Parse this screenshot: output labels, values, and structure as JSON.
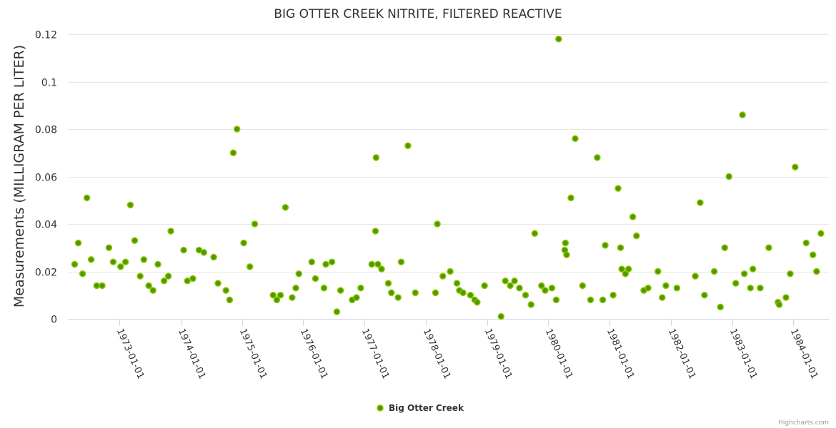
{
  "chart_data": {
    "type": "scatter",
    "title": "BIG OTTER CREEK NITRITE, FILTERED REACTIVE",
    "xlabel": "",
    "ylabel": "Measurements (MILLIGRAM PER LITER)",
    "ylim": [
      0,
      0.12
    ],
    "xlim": [
      1972.16,
      1984.58
    ],
    "yticks": [
      0,
      0.02,
      0.04,
      0.06,
      0.08,
      0.1,
      0.12
    ],
    "ytick_labels": [
      "0",
      "0.02",
      "0.04",
      "0.06",
      "0.08",
      "0.1",
      "0.12"
    ],
    "xticks": [
      1973,
      1974,
      1975,
      1976,
      1977,
      1978,
      1979,
      1980,
      1981,
      1982,
      1983,
      1984
    ],
    "xtick_labels": [
      "1973-01-01",
      "1974-01-01",
      "1975-01-01",
      "1976-01-01",
      "1977-01-01",
      "1978-01-01",
      "1979-01-01",
      "1980-01-01",
      "1981-01-01",
      "1982-01-01",
      "1983-01-01",
      "1984-01-01"
    ],
    "grid": true,
    "legend_position": "bottom-center",
    "series": [
      {
        "name": "Big Otter Creek",
        "color": "#4f9a00",
        "x": [
          1972.27,
          1972.33,
          1972.4,
          1972.47,
          1972.54,
          1972.63,
          1972.72,
          1972.83,
          1972.9,
          1973.02,
          1973.1,
          1973.18,
          1973.25,
          1973.34,
          1973.4,
          1973.48,
          1973.55,
          1973.63,
          1973.73,
          1973.8,
          1973.84,
          1974.05,
          1974.11,
          1974.2,
          1974.3,
          1974.38,
          1974.54,
          1974.61,
          1974.74,
          1974.8,
          1974.86,
          1974.92,
          1975.03,
          1975.13,
          1975.21,
          1975.51,
          1975.57,
          1975.63,
          1975.71,
          1975.82,
          1975.88,
          1975.93,
          1976.14,
          1976.2,
          1976.34,
          1976.37,
          1976.47,
          1976.55,
          1976.61,
          1976.8,
          1976.87,
          1976.94,
          1977.12,
          1977.18,
          1977.19,
          1977.22,
          1977.28,
          1977.39,
          1977.44,
          1977.55,
          1977.6,
          1977.71,
          1977.83,
          1978.16,
          1978.19,
          1978.28,
          1978.4,
          1978.51,
          1978.55,
          1978.61,
          1978.73,
          1978.8,
          1978.84,
          1978.96,
          1979.23,
          1979.3,
          1979.38,
          1979.45,
          1979.53,
          1979.63,
          1979.72,
          1979.78,
          1979.89,
          1979.95,
          1980.06,
          1980.13,
          1980.17,
          1980.27,
          1980.28,
          1980.3,
          1980.37,
          1980.44,
          1980.56,
          1980.69,
          1980.8,
          1980.89,
          1980.93,
          1981.06,
          1981.14,
          1981.18,
          1981.2,
          1981.26,
          1981.31,
          1981.38,
          1981.44,
          1981.56,
          1981.63,
          1981.79,
          1981.86,
          1981.92,
          1982.1,
          1982.4,
          1982.48,
          1982.55,
          1982.71,
          1982.81,
          1982.88,
          1982.95,
          1983.06,
          1983.17,
          1983.2,
          1983.3,
          1983.34,
          1983.46,
          1983.6,
          1983.75,
          1983.77,
          1983.88,
          1983.95,
          1984.03,
          1984.21,
          1984.32,
          1984.38,
          1984.45
        ],
        "y": [
          0.023,
          0.032,
          0.019,
          0.051,
          0.025,
          0.014,
          0.014,
          0.03,
          0.024,
          0.022,
          0.024,
          0.048,
          0.033,
          0.018,
          0.025,
          0.014,
          0.012,
          0.023,
          0.016,
          0.018,
          0.037,
          0.029,
          0.016,
          0.017,
          0.029,
          0.028,
          0.026,
          0.015,
          0.012,
          0.008,
          0.07,
          0.08,
          0.032,
          0.022,
          0.04,
          0.01,
          0.008,
          0.01,
          0.047,
          0.009,
          0.013,
          0.019,
          0.024,
          0.017,
          0.013,
          0.023,
          0.024,
          0.003,
          0.012,
          0.008,
          0.009,
          0.013,
          0.023,
          0.037,
          0.068,
          0.023,
          0.021,
          0.015,
          0.011,
          0.009,
          0.024,
          0.073,
          0.011,
          0.011,
          0.04,
          0.018,
          0.02,
          0.015,
          0.012,
          0.011,
          0.01,
          0.008,
          0.007,
          0.014,
          0.001,
          0.016,
          0.014,
          0.016,
          0.013,
          0.01,
          0.006,
          0.036,
          0.014,
          0.012,
          0.013,
          0.008,
          0.118,
          0.029,
          0.032,
          0.027,
          0.051,
          0.076,
          0.014,
          0.008,
          0.068,
          0.008,
          0.031,
          0.01,
          0.055,
          0.03,
          0.021,
          0.019,
          0.021,
          0.043,
          0.035,
          0.012,
          0.013,
          0.02,
          0.009,
          0.014,
          0.013,
          0.018,
          0.049,
          0.01,
          0.02,
          0.005,
          0.03,
          0.06,
          0.015,
          0.086,
          0.019,
          0.013,
          0.021,
          0.013,
          0.03,
          0.007,
          0.006,
          0.009,
          0.019,
          0.064,
          0.032,
          0.027,
          0.02,
          0.036
        ]
      }
    ]
  },
  "credits": "Highcharts.com"
}
